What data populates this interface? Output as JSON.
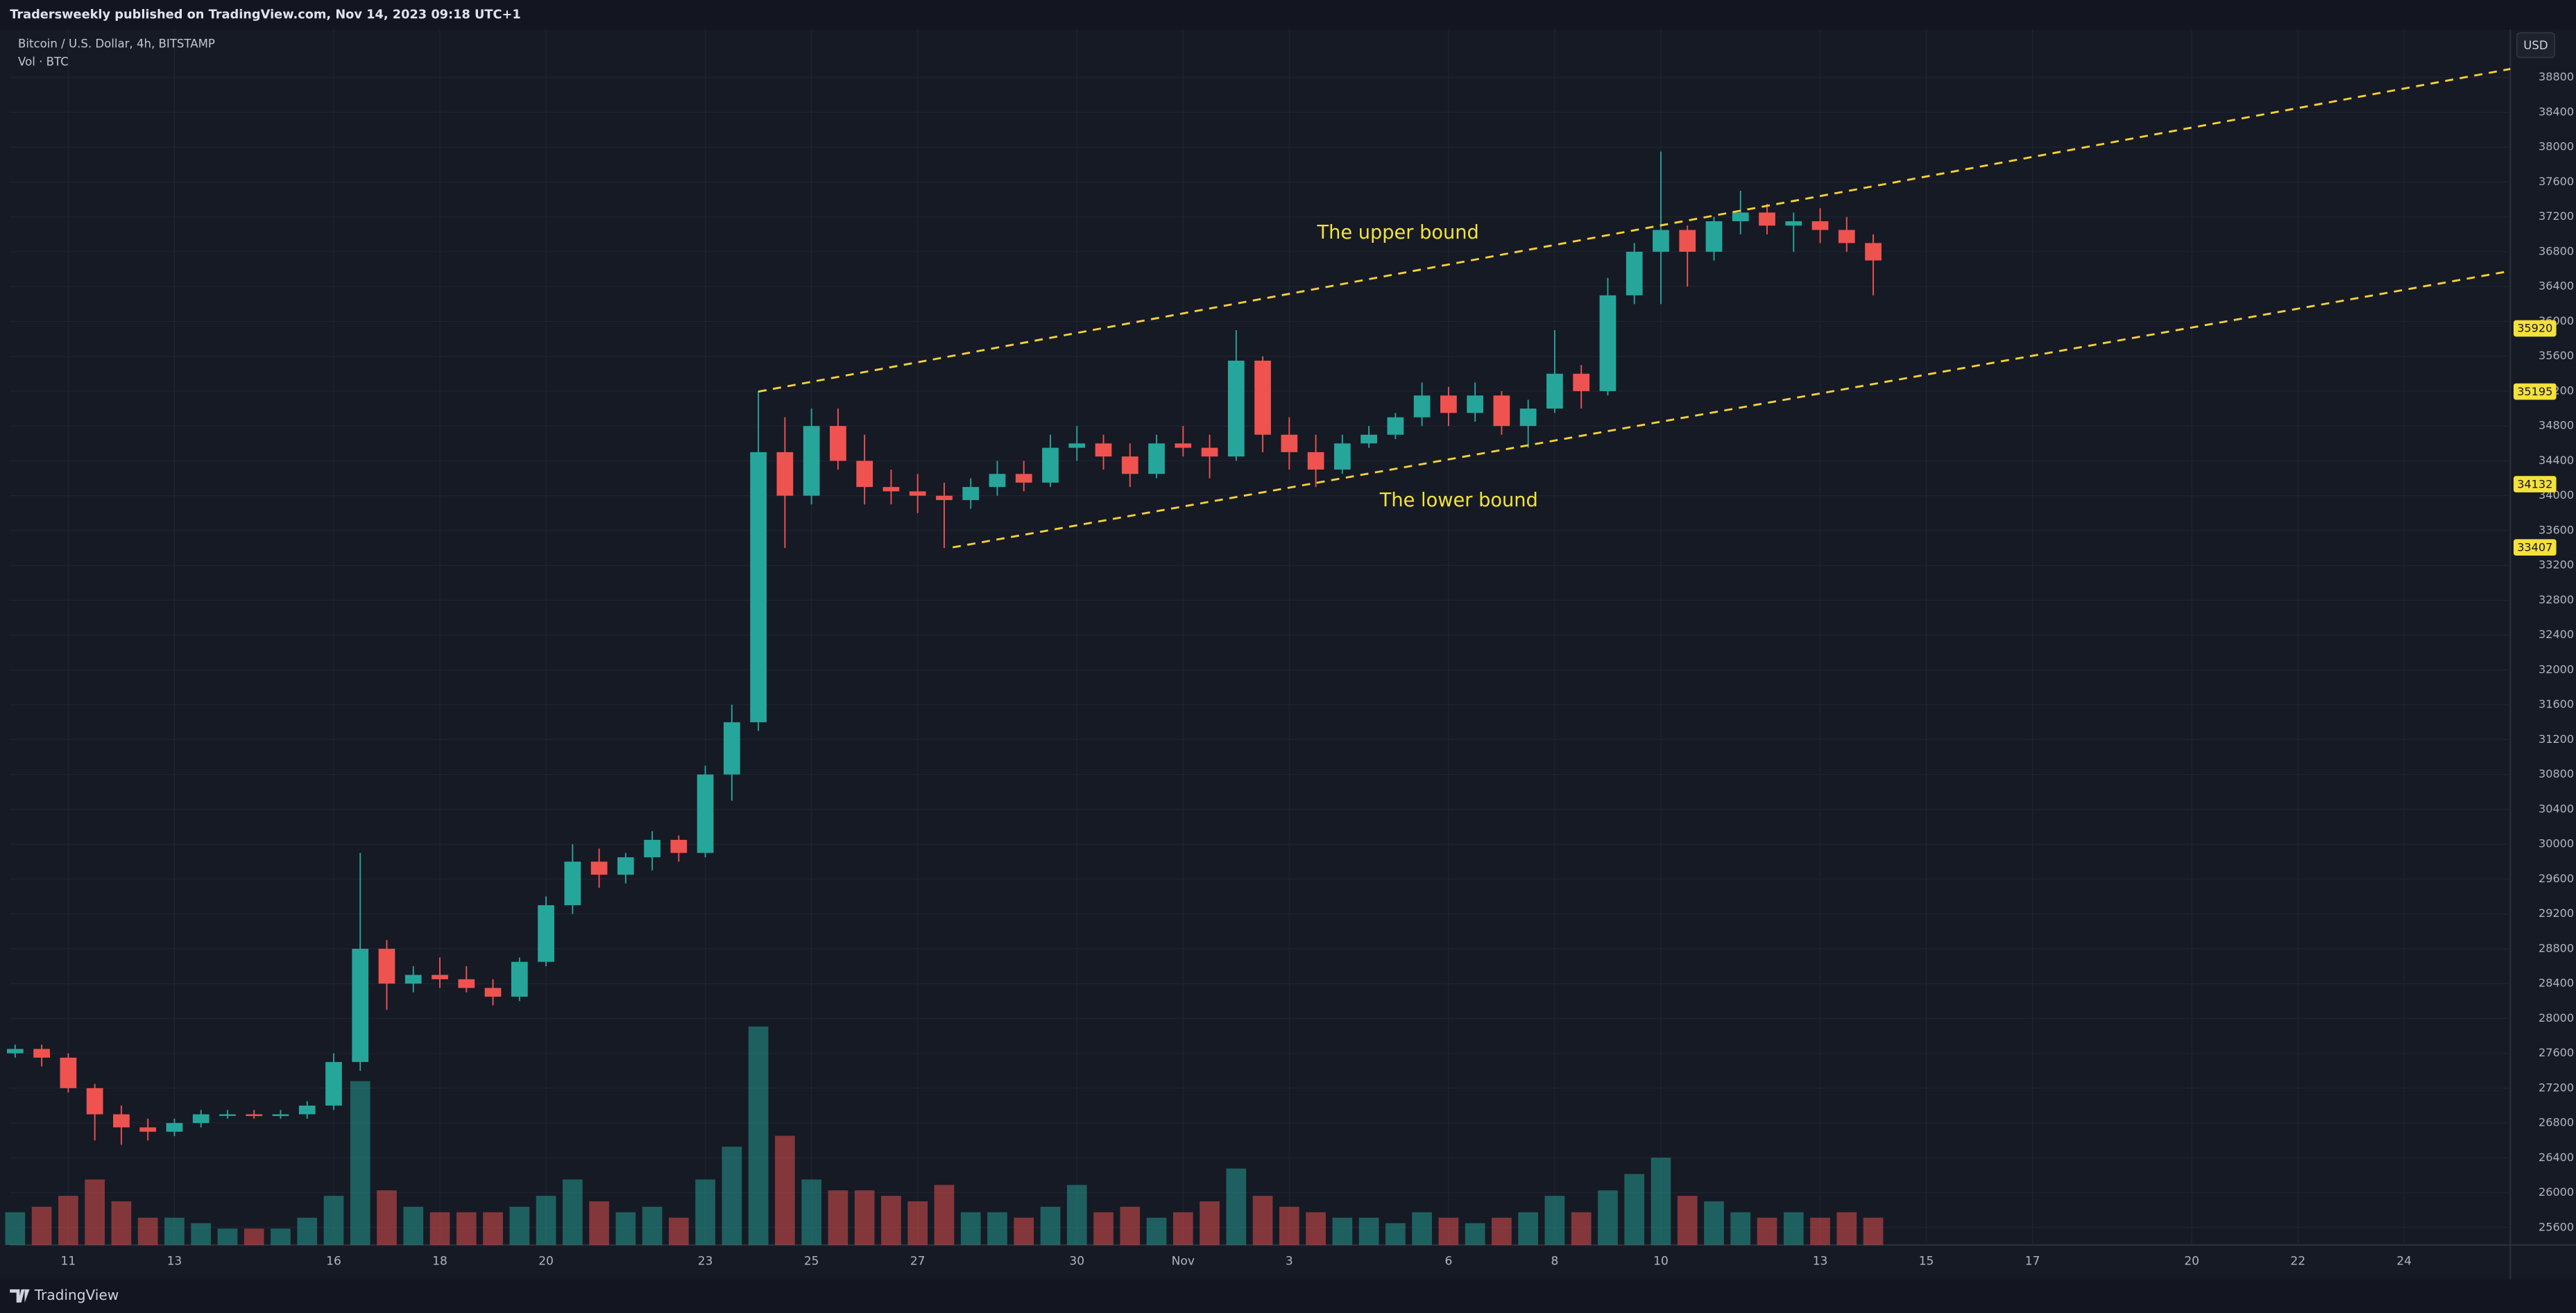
{
  "header": {
    "publisher": "Tradersweekly published on TradingView.com, Nov 14, 2023 09:18 UTC+1"
  },
  "footer": {
    "brand": "TradingView"
  },
  "chart_data": {
    "type": "candlestick",
    "title": "Bitcoin / U.S. Dollar, 4h, BITSTAMP",
    "subtitle": "Vol · BTC",
    "currency": "USD",
    "up_color": "#26a69a",
    "down_color": "#ef5350",
    "grid": true,
    "x": [
      10,
      10.5,
      11,
      11.5,
      12,
      12.5,
      13,
      13.5,
      14,
      14.5,
      15,
      15.5,
      16,
      16.5,
      17,
      17.5,
      18,
      18.5,
      19,
      19.5,
      20,
      20.5,
      21,
      21.5,
      22,
      22.5,
      23,
      23.5,
      24,
      24.5,
      25,
      25.5,
      26,
      26.5,
      27,
      27.5,
      28,
      28.5,
      29,
      29.5,
      30,
      30.5,
      31,
      31.5,
      32,
      32.5,
      33,
      33.5,
      34,
      34.5,
      35,
      35.5,
      36,
      36.5,
      37,
      37.5,
      38,
      38.5,
      39,
      39.5,
      40,
      40.5,
      41,
      41.5,
      42,
      42.5,
      43,
      43.5,
      44,
      44.5,
      45
    ],
    "open": [
      27600,
      27650,
      27550,
      27200,
      26900,
      26750,
      26700,
      26800,
      26900,
      26900,
      26880,
      26900,
      27000,
      27500,
      28800,
      28400,
      28500,
      28450,
      28350,
      28250,
      28650,
      29300,
      29800,
      29650,
      29850,
      30050,
      29900,
      30800,
      31400,
      34500,
      34000,
      34800,
      34400,
      34100,
      34050,
      34000,
      33950,
      34100,
      34250,
      34150,
      34550,
      34600,
      34450,
      34250,
      34600,
      34550,
      34450,
      35550,
      34700,
      34500,
      34300,
      34600,
      34700,
      34900,
      35150,
      34950,
      35150,
      34800,
      35000,
      35400,
      35200,
      36300,
      36800,
      37050,
      36800,
      37150,
      37250,
      37100,
      37150,
      37050,
      36900
    ],
    "high": [
      27700,
      27700,
      27600,
      27250,
      27000,
      26850,
      26850,
      26950,
      26950,
      26950,
      26950,
      27050,
      27600,
      29900,
      28900,
      28600,
      28700,
      28600,
      28450,
      28700,
      29400,
      30000,
      29950,
      29900,
      30150,
      30100,
      30900,
      31600,
      35200,
      34900,
      35000,
      35000,
      34700,
      34300,
      34250,
      34150,
      34200,
      34400,
      34400,
      34700,
      34800,
      34700,
      34600,
      34700,
      34800,
      34700,
      35900,
      35600,
      34900,
      34700,
      34700,
      34800,
      34950,
      35300,
      35250,
      35300,
      35200,
      35100,
      35900,
      35500,
      36500,
      36900,
      37950,
      37100,
      37200,
      37500,
      37350,
      37250,
      37300,
      37200,
      37000
    ],
    "low": [
      27550,
      27450,
      27150,
      26600,
      26550,
      26600,
      26650,
      26750,
      26850,
      26850,
      26850,
      26850,
      26950,
      27400,
      28100,
      28300,
      28350,
      28300,
      28150,
      28200,
      28600,
      29200,
      29500,
      29550,
      29700,
      29800,
      29850,
      30500,
      31300,
      33400,
      33900,
      34300,
      33900,
      33900,
      33800,
      33400,
      33850,
      34000,
      34050,
      34100,
      34400,
      34300,
      34100,
      34200,
      34450,
      34200,
      34400,
      34500,
      34300,
      34100,
      34250,
      34550,
      34650,
      34800,
      34800,
      34850,
      34700,
      34550,
      34950,
      35000,
      35150,
      36200,
      36200,
      36400,
      36700,
      37000,
      37000,
      36800,
      36900,
      36800,
      36300
    ],
    "close": [
      27650,
      27550,
      27200,
      26900,
      26750,
      26700,
      26800,
      26900,
      26900,
      26880,
      26900,
      27000,
      27500,
      28800,
      28400,
      28500,
      28450,
      28350,
      28250,
      28650,
      29300,
      29800,
      29650,
      29850,
      30050,
      29900,
      30800,
      31400,
      34500,
      34000,
      34800,
      34400,
      34100,
      34050,
      34000,
      33950,
      34100,
      34250,
      34150,
      34550,
      34600,
      34450,
      34250,
      34600,
      34550,
      34450,
      35550,
      34700,
      34500,
      34300,
      34600,
      34700,
      34900,
      35150,
      34950,
      35150,
      34800,
      35000,
      35400,
      35200,
      36300,
      36800,
      37050,
      36800,
      37150,
      37250,
      37100,
      37150,
      37050,
      36900,
      36700
    ],
    "volume": [
      300,
      350,
      450,
      600,
      400,
      250,
      250,
      200,
      150,
      150,
      150,
      250,
      450,
      1500,
      500,
      350,
      300,
      300,
      300,
      350,
      450,
      600,
      400,
      300,
      350,
      250,
      600,
      900,
      2000,
      1000,
      600,
      500,
      500,
      450,
      400,
      550,
      300,
      300,
      250,
      350,
      550,
      300,
      350,
      250,
      300,
      400,
      700,
      450,
      350,
      300,
      250,
      250,
      200,
      300,
      250,
      200,
      250,
      300,
      450,
      300,
      500,
      650,
      800,
      450,
      400,
      300,
      250,
      300,
      250,
      300,
      250
    ],
    "xlim": [
      9.9,
      57
    ],
    "ylim": [
      25400,
      39350
    ],
    "xticks": [
      11,
      13,
      16,
      18,
      20,
      23,
      25,
      27,
      30,
      {
        "value": 32,
        "label": "Nov"
      },
      {
        "value": 34,
        "label": "3"
      },
      {
        "value": 37,
        "label": "6"
      },
      {
        "value": 39,
        "label": "8"
      },
      {
        "value": 41,
        "label": "10"
      },
      {
        "value": 44,
        "label": "13"
      },
      {
        "value": 46,
        "label": "15"
      },
      {
        "value": 48,
        "label": "17"
      },
      {
        "value": 51,
        "label": "20"
      },
      {
        "value": 53,
        "label": "22"
      },
      {
        "value": 55,
        "label": "24"
      }
    ],
    "yticks": [
      25600,
      26000,
      26400,
      26800,
      27200,
      27600,
      28000,
      28400,
      28800,
      29200,
      29600,
      30000,
      30400,
      30800,
      31200,
      31600,
      32000,
      32400,
      32800,
      33200,
      33600,
      34000,
      34400,
      34800,
      35200,
      35600,
      36000,
      36400,
      36800,
      37200,
      37600,
      38000,
      38400,
      38800
    ],
    "lines": [
      {
        "x": [
          24.0,
          57
        ],
        "y": [
          35195,
          38898
        ],
        "color": "#f5d13b"
      },
      {
        "x": [
          27.66,
          57
        ],
        "y": [
          33407,
          36579
        ],
        "color": "#f5d13b"
      }
    ],
    "price_labels": [
      35920,
      35195,
      34132,
      33407
    ],
    "price_label_color": "#f5e13b",
    "annotations": [
      "The upper bound",
      "The lower bound"
    ],
    "annotation_color": "#f2e33c"
  }
}
